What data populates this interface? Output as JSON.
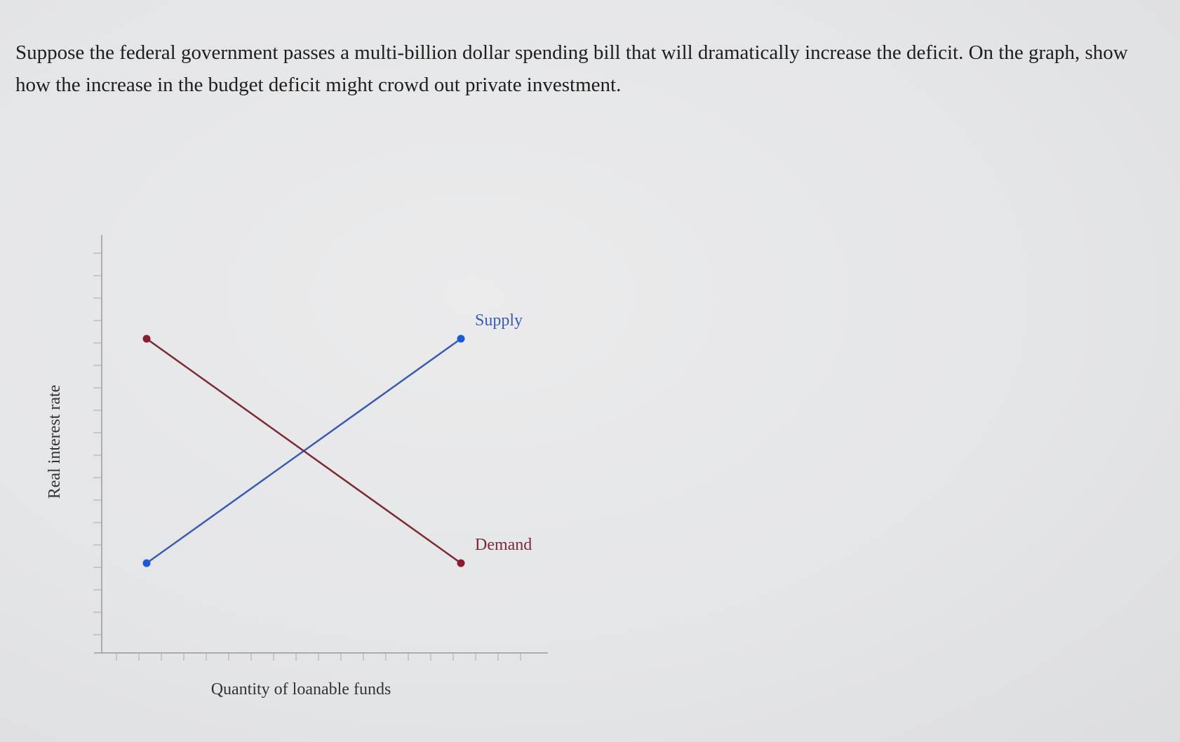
{
  "question": "Suppose the federal government passes a multi-billion dollar spending bill that will dramatically increase the deficit. On the graph, show how the increase in the budget deficit might crowd out private investment.",
  "chart_data": {
    "type": "line",
    "title": "",
    "xlabel": "Quantity of loanable funds",
    "ylabel": "Real interest rate",
    "xlim": [
      0,
      20
    ],
    "ylim": [
      0,
      18
    ],
    "grid": false,
    "series": [
      {
        "name": "Supply",
        "color": "#3a5cb0",
        "point_color": "#1a5ad8",
        "points": [
          [
            2,
            4
          ],
          [
            16,
            14
          ]
        ]
      },
      {
        "name": "Demand",
        "color": "#7a2a35",
        "point_color": "#8e1a2e",
        "points": [
          [
            2,
            14
          ],
          [
            16,
            4
          ]
        ]
      }
    ]
  }
}
